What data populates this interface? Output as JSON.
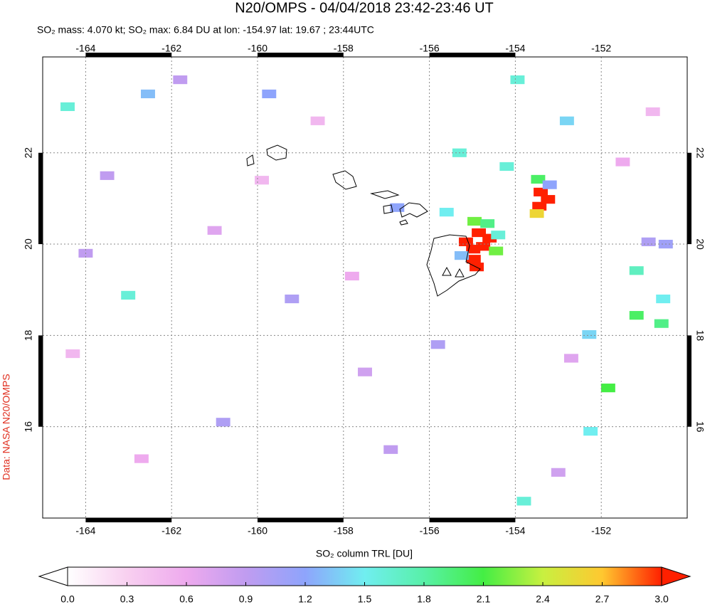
{
  "header": {
    "title": "N20/OMPS - 04/04/2018 23:42-23:46 UT",
    "subtitle": "SO₂ mass: 4.070 kt; SO₂ max: 6.84 DU at lon: -154.97 lat: 19.67 ; 23:44UTC",
    "credit": "Data: NASA N20/OMPS"
  },
  "chart_data": {
    "type": "pixelmap",
    "xlim": [
      -165,
      -150
    ],
    "ylim": [
      14,
      24.1
    ],
    "xticks": [
      -164,
      -162,
      -160,
      -158,
      -156,
      -154,
      -152
    ],
    "yticks": [
      16,
      18,
      20,
      22
    ],
    "grid": true,
    "pixels": {
      "lon": [
        -154.98,
        -154.97,
        -154.6,
        -154.75,
        -154.85,
        -155.15,
        -154.9,
        -154.45,
        -154.95,
        -154.65,
        -154.4,
        -155.25,
        -153.41,
        -153.44,
        -153.24,
        -153.47,
        -153.5,
        -153.2,
        -164.42,
        -162.55,
        -159.73,
        -163.01,
        -151.18,
        -151.18,
        -150.6,
        -151.84,
        -153.8,
        -152.25,
        -150.56,
        -152.28,
        -155.3,
        -154.2,
        -153.95,
        -155.6,
        -156.75,
        -152.8,
        -163.5,
        -161.0,
        -159.2,
        -157.5,
        -160.8,
        -162.7,
        -158.6,
        -156.9,
        -152.7,
        -151.5,
        -164.3,
        -161.8,
        -157.8,
        -159.9,
        -155.8,
        -153.0,
        -164.0,
        -150.8,
        -150.5,
        -150.9
      ],
      "lat": [
        19.89,
        19.67,
        20.13,
        19.95,
        20.25,
        20.05,
        19.5,
        19.85,
        20.5,
        20.45,
        20.2,
        19.75,
        21.14,
        20.83,
        20.98,
        21.42,
        20.67,
        21.3,
        23.01,
        23.29,
        23.29,
        18.88,
        19.42,
        18.44,
        18.26,
        16.85,
        14.37,
        15.9,
        18.8,
        18.02,
        22.0,
        21.7,
        23.6,
        20.7,
        20.8,
        22.7,
        21.5,
        20.3,
        18.8,
        17.2,
        16.1,
        15.3,
        22.7,
        15.5,
        17.5,
        21.8,
        17.6,
        23.6,
        19.3,
        21.4,
        17.8,
        15.0,
        19.8,
        22.9,
        20.0,
        20.05
      ],
      "values": [
        3.5,
        6.84,
        4.2,
        4.8,
        3.2,
        3.1,
        3.3,
        2.2,
        2.2,
        1.9,
        1.6,
        1.3,
        3.5,
        3.2,
        3.1,
        2.0,
        2.6,
        1.2,
        1.6,
        1.3,
        1.2,
        1.6,
        1.7,
        2.0,
        1.9,
        2.1,
        1.6,
        1.5,
        1.5,
        1.4,
        1.6,
        1.6,
        1.6,
        1.5,
        1.2,
        1.4,
        0.9,
        0.7,
        1.0,
        0.8,
        1.0,
        0.6,
        0.5,
        0.9,
        0.7,
        0.6,
        0.5,
        0.9,
        0.6,
        0.5,
        1.0,
        0.8,
        0.9,
        0.5,
        1.1,
        1.0
      ]
    },
    "colorbar": {
      "label": "SO₂ column TRL [DU]",
      "clim": [
        0,
        3
      ],
      "ticks": [
        {
          "value": 0,
          "label": "0.0"
        },
        0.3,
        0.6,
        0.9,
        1.2,
        1.5,
        1.8,
        2.1,
        2.4,
        2.7,
        {
          "value": 3,
          "label": "3.0"
        }
      ],
      "colors": [
        "#ffffff",
        "#f8d0f0",
        "#eeaaee",
        "#c09cf0",
        "#8ea4fc",
        "#70eef0",
        "#58f0a8",
        "#44ee44",
        "#c8f040",
        "#ffc830",
        "#ff2000"
      ]
    }
  }
}
